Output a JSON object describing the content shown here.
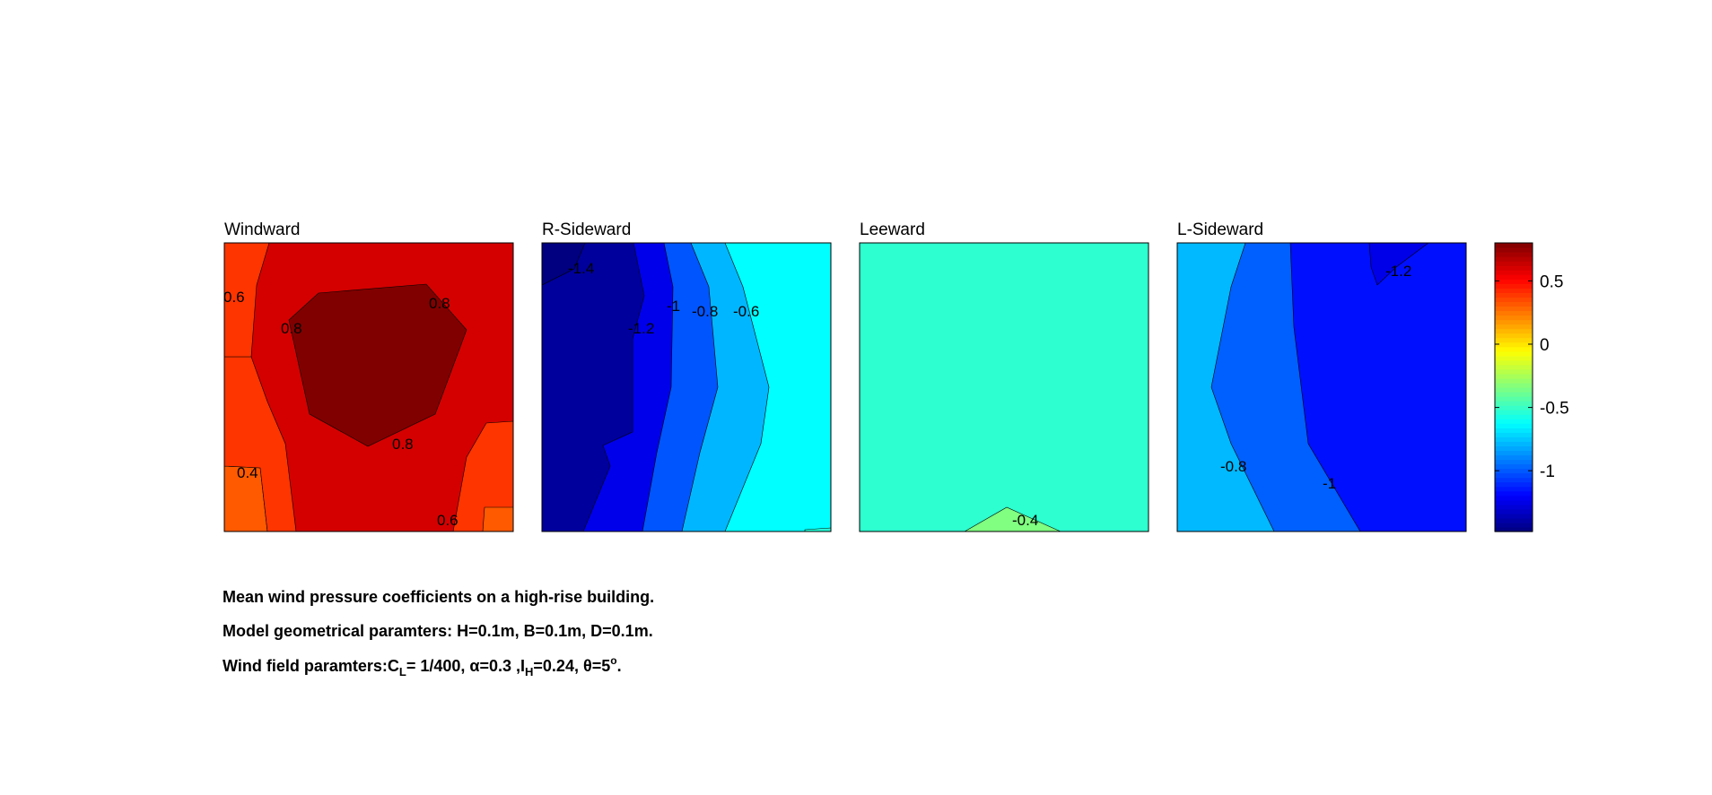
{
  "chart_data": {
    "type": "contour",
    "panels": [
      {
        "title": "Windward",
        "band_colors": [
          "#ff5a00",
          "#ff3500",
          "#d40000",
          "#800000"
        ],
        "contour_labels": [
          "0.6",
          "0.8",
          "0.8",
          "0.4",
          "0.8",
          "0.6"
        ]
      },
      {
        "title": "R-Sideward",
        "band_colors": [
          "#00009c",
          "#0000ea",
          "#0055ff",
          "#00b7ff",
          "#00ffff",
          "#25ffd9"
        ],
        "contour_labels": [
          "-1.4",
          "-1.2",
          "-1",
          "-0.8",
          "-0.6"
        ]
      },
      {
        "title": "Leeward",
        "band_colors": [
          "#2dffd0",
          "#80ff80"
        ],
        "contour_labels": [
          "-0.4"
        ]
      },
      {
        "title": "L-Sideward",
        "band_colors": [
          "#00b9ff",
          "#0060ff",
          "#0010ff",
          "#0000e8"
        ],
        "contour_labels": [
          "-1.2",
          "-0.8",
          "-1"
        ]
      }
    ],
    "colorbar": {
      "ticks": [
        "0.5",
        "0",
        "-0.5",
        "-1"
      ],
      "tick_values": [
        0.5,
        0,
        -0.5,
        -1
      ],
      "range": [
        -1.48,
        0.8
      ],
      "colormap": "jet"
    }
  },
  "caption": {
    "line1": "Mean wind pressure coefficients on a high-rise building.",
    "line2": "Model geometrical paramters: H=0.1m, B=0.1m, D=0.1m.",
    "line3": {
      "prefix": "Wind field paramters:C",
      "c_sub": "L",
      "mid1": "= 1/400, ",
      "alpha": "α",
      "mid2": "=0.3 ,I",
      "i_sub": "H",
      "mid3": "=0.24, ",
      "theta": "θ",
      "mid4": "=5",
      "deg_sup": "o",
      "end": "."
    }
  }
}
